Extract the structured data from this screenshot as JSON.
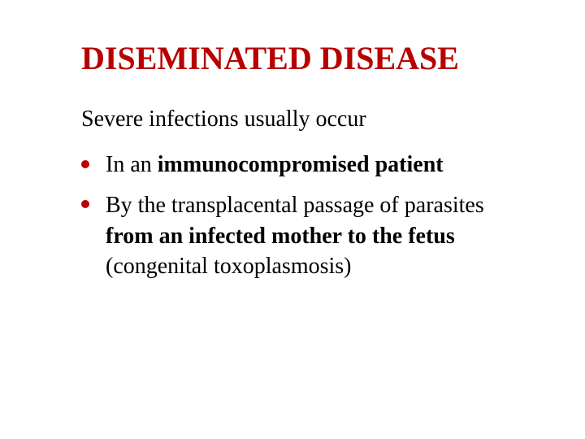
{
  "colors": {
    "title": "#b70000",
    "text": "#000000",
    "bullet": "#b70000",
    "background": "#ffffff"
  },
  "typography": {
    "title_fontsize": 40,
    "body_fontsize": 28,
    "font_family": "Times New Roman"
  },
  "title": "DISEMINATED  DISEASE",
  "subtitle": "Severe infections usually occur",
  "bullet1": {
    "prefix": "In an ",
    "bold": "immunocompromised patient"
  },
  "bullet2": {
    "line1": "By the transplacental passage of parasites",
    "line2_bold": "from an infected mother to the fetus",
    "line3": " (congenital toxoplasmosis)"
  }
}
